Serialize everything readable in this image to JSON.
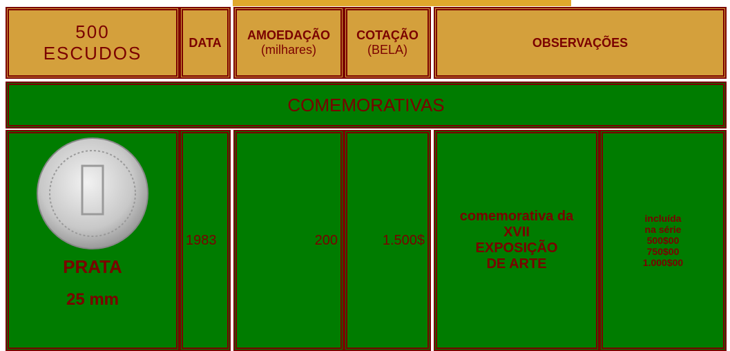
{
  "header": {
    "title_line1": "500",
    "title_line2": "ESCUDOS",
    "date": "DATA",
    "mintage": "AMOEDAÇÃO",
    "mintage_unit": "(milhares)",
    "price": "COTAÇÃO",
    "price_unit": "(BELA)",
    "notes": "OBSERVAÇÕES"
  },
  "section": {
    "title": "COMEMORATIVAS"
  },
  "row": {
    "metal": "PRATA",
    "diameter": "25 mm",
    "date": "1983",
    "mintage": "200",
    "price": "1.500$",
    "description": [
      "comemorativa da",
      "XVII",
      "EXPOSIÇÃO",
      "DE ARTE"
    ],
    "series": [
      "incluída",
      "na série",
      "500$00",
      "750$00",
      "1.000$00"
    ]
  }
}
